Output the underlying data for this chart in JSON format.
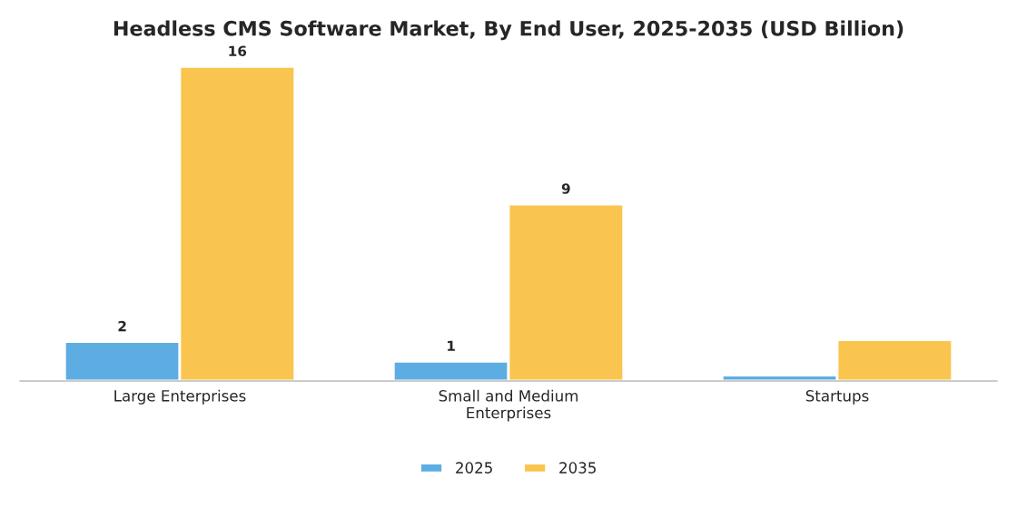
{
  "chart_data": {
    "type": "bar",
    "title": "Headless CMS Software Market, By End User, 2025-2035 (USD Billion)",
    "categories": [
      "Large Enterprises",
      "Small and Medium\nEnterprises",
      "Startups"
    ],
    "series": [
      {
        "name": "2025",
        "color": "#5dade2",
        "values": [
          2,
          1,
          0.3
        ],
        "value_labels": [
          "2",
          "1",
          null
        ]
      },
      {
        "name": "2035",
        "color": "#f9c54e",
        "values": [
          16,
          9,
          2.1
        ],
        "value_labels": [
          "16",
          "9",
          null
        ]
      }
    ],
    "tick_labels": "x",
    "grid": false,
    "legend": "bottom"
  }
}
